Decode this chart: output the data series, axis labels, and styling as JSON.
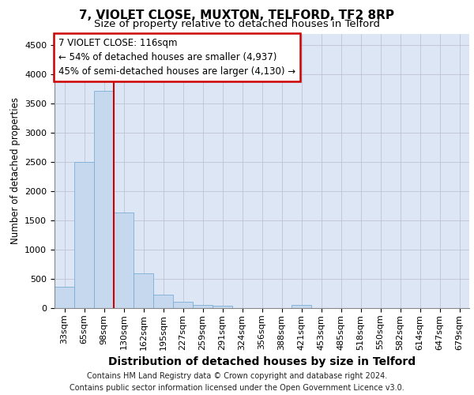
{
  "title": "7, VIOLET CLOSE, MUXTON, TELFORD, TF2 8RP",
  "subtitle": "Size of property relative to detached houses in Telford",
  "xlabel": "Distribution of detached houses by size in Telford",
  "ylabel": "Number of detached properties",
  "categories": [
    "33sqm",
    "65sqm",
    "98sqm",
    "130sqm",
    "162sqm",
    "195sqm",
    "227sqm",
    "259sqm",
    "291sqm",
    "324sqm",
    "356sqm",
    "388sqm",
    "421sqm",
    "453sqm",
    "485sqm",
    "518sqm",
    "550sqm",
    "582sqm",
    "614sqm",
    "647sqm",
    "679sqm"
  ],
  "values": [
    370,
    2500,
    3720,
    1630,
    590,
    230,
    105,
    60,
    40,
    0,
    0,
    0,
    60,
    0,
    0,
    0,
    0,
    0,
    0,
    0,
    0
  ],
  "bar_color": "#c5d8ed",
  "bar_edge_color": "#7aaed6",
  "grid_color": "#bbbbcc",
  "vline_color": "#cc0000",
  "annotation_line1": "7 VIOLET CLOSE: 116sqm",
  "annotation_line2": "← 54% of detached houses are smaller (4,937)",
  "annotation_line3": "45% of semi-detached houses are larger (4,130) →",
  "annotation_box_color": "#cc0000",
  "ylim": [
    0,
    4700
  ],
  "yticks": [
    0,
    500,
    1000,
    1500,
    2000,
    2500,
    3000,
    3500,
    4000,
    4500
  ],
  "background_color": "#dce6f5",
  "footer_line1": "Contains HM Land Registry data © Crown copyright and database right 2024.",
  "footer_line2": "Contains public sector information licensed under the Open Government Licence v3.0.",
  "title_fontsize": 11,
  "subtitle_fontsize": 9.5,
  "xlabel_fontsize": 10,
  "ylabel_fontsize": 8.5,
  "tick_fontsize": 8,
  "footer_fontsize": 7,
  "annotation_fontsize": 8.5
}
